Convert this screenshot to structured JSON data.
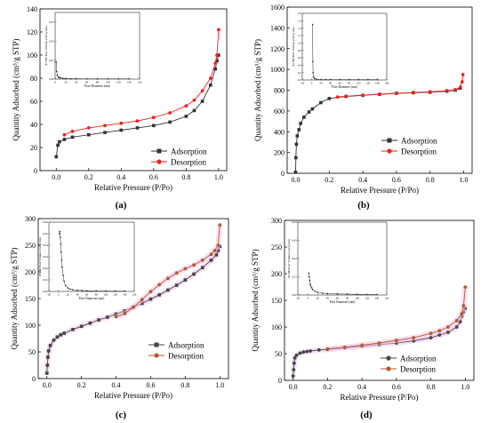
{
  "figure": {
    "panels": [
      "(a)",
      "(b)",
      "(c)",
      "(d)"
    ]
  },
  "chart_data": [
    {
      "type": "line",
      "panel": "(a)",
      "xlabel": "Relative Pressure (P/Po)",
      "ylabel": "Quantity Adsorbed (cm³/g STP)",
      "xlim": [
        -0.1,
        1.05
      ],
      "ylim": [
        0,
        140
      ],
      "xticks": [
        0.0,
        0.2,
        0.4,
        0.6,
        0.8,
        1.0
      ],
      "yticks": [
        0,
        20,
        40,
        60,
        80,
        100,
        120,
        140
      ],
      "legend_position": "lower-right",
      "series": [
        {
          "name": "Adsorption",
          "color": "#333333",
          "marker": "square",
          "x": [
            0.0,
            0.01,
            0.02,
            0.05,
            0.1,
            0.2,
            0.3,
            0.4,
            0.5,
            0.6,
            0.7,
            0.8,
            0.85,
            0.9,
            0.95,
            0.98,
            0.99,
            1.0
          ],
          "y": [
            12,
            22,
            25,
            27,
            29,
            31,
            33,
            35,
            37,
            39,
            42,
            47,
            52,
            60,
            74,
            88,
            95,
            100
          ]
        },
        {
          "name": "Desorption",
          "color": "#ee2222",
          "marker": "circle",
          "x": [
            1.0,
            0.99,
            0.98,
            0.95,
            0.9,
            0.85,
            0.8,
            0.7,
            0.6,
            0.5,
            0.4,
            0.3,
            0.2,
            0.1,
            0.05
          ],
          "y": [
            122,
            100,
            93,
            80,
            69,
            61,
            56,
            50,
            46,
            43,
            41,
            39,
            37,
            34,
            31
          ]
        }
      ],
      "inset": {
        "xlabel": "Pore Diameter (nm)",
        "ylabel": "dV/dD Pore Volume (cm³/g·nm)",
        "xlim": [
          0,
          160
        ],
        "ylim": [
          0,
          0.035
        ],
        "xticks": [
          0,
          20,
          40,
          60,
          80,
          100,
          120,
          140,
          160
        ],
        "yticks": [
          0.0,
          0.01,
          0.02,
          0.03
        ],
        "x": [
          2,
          3,
          4,
          6,
          8,
          10,
          15,
          20,
          30,
          40,
          60,
          80,
          100,
          120,
          140
        ],
        "y": [
          0.009,
          0.004,
          0.002,
          0.001,
          0.0008,
          0.0006,
          0.0004,
          0.0003,
          0.0002,
          0.0002,
          0.0001,
          0.0001,
          0.0001,
          0.0001,
          0.0001
        ]
      }
    },
    {
      "type": "line",
      "panel": "(b)",
      "xlabel": "Relative Pressure (P/Po)",
      "ylabel": "Quantity Adsorbed (cm³/g STP)",
      "xlim": [
        -0.05,
        1.05
      ],
      "ylim": [
        0,
        1600
      ],
      "xticks": [
        0.0,
        0.2,
        0.4,
        0.6,
        0.8,
        1.0
      ],
      "yticks": [
        0,
        200,
        400,
        600,
        800,
        1000,
        1200,
        1400,
        1600
      ],
      "legend_position": "lower-right",
      "series": [
        {
          "name": "Adsorption",
          "color": "#333333",
          "marker": "square",
          "x": [
            0.0,
            0.002,
            0.005,
            0.01,
            0.02,
            0.03,
            0.05,
            0.08,
            0.1,
            0.15,
            0.2,
            0.3,
            0.4,
            0.5,
            0.6,
            0.7,
            0.8,
            0.9,
            0.95,
            0.98
          ],
          "y": [
            10,
            150,
            280,
            360,
            420,
            480,
            540,
            590,
            620,
            680,
            720,
            740,
            750,
            760,
            770,
            775,
            780,
            790,
            800,
            820
          ]
        },
        {
          "name": "Desorption",
          "color": "#ee2222",
          "marker": "circle",
          "x": [
            0.995,
            0.99,
            0.98,
            0.95,
            0.9,
            0.8,
            0.7,
            0.6,
            0.5,
            0.4,
            0.3,
            0.25
          ],
          "y": [
            950,
            880,
            830,
            805,
            795,
            785,
            778,
            770,
            762,
            752,
            742,
            735
          ]
        }
      ],
      "inset": {
        "xlabel": "Pore Diameter (nm)",
        "ylabel": "dV/dD Pore Volume (cm³/g·nm)",
        "xlim": [
          -20,
          160
        ],
        "ylim": [
          0,
          1.8
        ],
        "xticks": [
          -20,
          0,
          20,
          40,
          60,
          80,
          100,
          120,
          140,
          160
        ],
        "yticks": [
          0.0,
          0.2,
          0.4,
          0.6,
          0.8,
          1.0,
          1.2,
          1.4,
          1.6,
          1.8
        ],
        "x": [
          2,
          2.5,
          3,
          4,
          6,
          10,
          20,
          30,
          40,
          60,
          80,
          100,
          120,
          140
        ],
        "y": [
          1.5,
          0.5,
          0.2,
          0.08,
          0.04,
          0.02,
          0.01,
          0.01,
          0.01,
          0.01,
          0.01,
          0.01,
          0.01,
          0.01
        ]
      }
    },
    {
      "type": "line",
      "panel": "(c)",
      "xlabel": "Relative Pressure (P/Po)",
      "ylabel": "Quantity Adsorbed (cm³/g STP)",
      "xlim": [
        -0.05,
        1.05
      ],
      "ylim": [
        0,
        300
      ],
      "xticks": [
        0.0,
        0.2,
        0.4,
        0.6,
        0.8,
        1.0
      ],
      "yticks": [
        0,
        50,
        100,
        150,
        200,
        250,
        300
      ],
      "legend_position": "lower-right",
      "series": [
        {
          "name": "Adsorption",
          "color": "#444444",
          "marker": "square",
          "x": [
            0.0,
            0.003,
            0.006,
            0.01,
            0.02,
            0.04,
            0.06,
            0.08,
            0.1,
            0.15,
            0.2,
            0.25,
            0.3,
            0.35,
            0.4,
            0.45,
            0.5,
            0.55,
            0.6,
            0.65,
            0.7,
            0.75,
            0.8,
            0.85,
            0.9,
            0.95,
            0.98,
            0.99,
            1.0
          ],
          "y": [
            10,
            25,
            40,
            52,
            62,
            72,
            78,
            82,
            85,
            92,
            98,
            104,
            110,
            115,
            121,
            127,
            134,
            141,
            149,
            157,
            166,
            175,
            185,
            196,
            208,
            222,
            232,
            240,
            248
          ]
        },
        {
          "name": "Desorption",
          "color": "#b85a2c",
          "marker": "circle",
          "x": [
            1.0,
            0.99,
            0.97,
            0.95,
            0.9,
            0.85,
            0.8,
            0.75,
            0.7,
            0.65,
            0.6,
            0.55,
            0.5,
            0.45,
            0.4
          ],
          "y": [
            288,
            250,
            240,
            233,
            222,
            213,
            206,
            198,
            188,
            176,
            163,
            148,
            134,
            122,
            116
          ]
        }
      ],
      "inset": {
        "xlabel": "Pore Diameter (nm)",
        "ylabel": "dV/dD Pore Volume (cm³/g·nm)",
        "xlim": [
          -20,
          160
        ],
        "ylim": [
          0,
          0.06
        ],
        "xticks": [
          -20,
          0,
          20,
          40,
          60,
          80,
          100,
          120,
          140,
          160
        ],
        "yticks": [
          0.0,
          0.01,
          0.02,
          0.03,
          0.04,
          0.05,
          0.06
        ],
        "x": [
          2,
          3,
          4,
          5,
          6,
          7,
          8,
          10,
          12,
          15,
          20,
          25,
          30,
          40,
          50,
          60,
          80,
          100,
          120,
          140
        ],
        "y": [
          0.05,
          0.052,
          0.047,
          0.041,
          0.034,
          0.027,
          0.021,
          0.014,
          0.009,
          0.005,
          0.003,
          0.002,
          0.0015,
          0.001,
          0.0008,
          0.0006,
          0.0005,
          0.0004,
          0.0003,
          0.0003
        ]
      }
    },
    {
      "type": "line",
      "panel": "(d)",
      "xlabel": "Relative Pressure (P/Po)",
      "ylabel": "Quantity Adsorbed (cm³/g STP)",
      "xlim": [
        -0.05,
        1.05
      ],
      "ylim": [
        0,
        300
      ],
      "xticks": [
        0.0,
        0.2,
        0.4,
        0.6,
        0.8,
        1.0
      ],
      "yticks": [
        0,
        50,
        100,
        150,
        200,
        250,
        300
      ],
      "legend_position": "lower-right",
      "series": [
        {
          "name": "Adsorption",
          "color": "#444444",
          "marker": "circle",
          "x": [
            0.0,
            0.003,
            0.006,
            0.01,
            0.02,
            0.04,
            0.06,
            0.08,
            0.1,
            0.15,
            0.2,
            0.3,
            0.4,
            0.5,
            0.6,
            0.7,
            0.8,
            0.85,
            0.9,
            0.95,
            0.97,
            0.98,
            0.99,
            1.0
          ],
          "y": [
            8,
            20,
            32,
            42,
            47,
            51,
            53,
            54,
            55,
            57,
            58,
            61,
            64,
            67,
            70,
            74,
            80,
            85,
            90,
            100,
            110,
            120,
            128,
            135
          ]
        },
        {
          "name": "Desorption",
          "color": "#b85a2c",
          "marker": "circle",
          "x": [
            1.0,
            0.99,
            0.98,
            0.95,
            0.9,
            0.85,
            0.8,
            0.7,
            0.6,
            0.5,
            0.4,
            0.3,
            0.2
          ],
          "y": [
            175,
            140,
            125,
            112,
            100,
            93,
            88,
            80,
            75,
            70,
            66,
            62,
            59
          ]
        }
      ],
      "inset": {
        "xlabel": "Pore Diameter (nm)",
        "ylabel": "dV/dD Pore Volume (cm³/g·nm)",
        "xlim": [
          -20,
          160
        ],
        "ylim": [
          0,
          0.04
        ],
        "xticks": [
          -20,
          0,
          20,
          40,
          60,
          80,
          100,
          120,
          140,
          160
        ],
        "yticks": [
          0.0,
          0.01,
          0.02,
          0.03,
          0.04
        ],
        "x": [
          2,
          3,
          4,
          5,
          6,
          8,
          10,
          15,
          20,
          30,
          40,
          60,
          80,
          100,
          120,
          140
        ],
        "y": [
          0.012,
          0.01,
          0.008,
          0.006,
          0.005,
          0.004,
          0.003,
          0.002,
          0.0015,
          0.001,
          0.0008,
          0.0006,
          0.0005,
          0.0004,
          0.0003,
          0.0003
        ]
      }
    }
  ]
}
